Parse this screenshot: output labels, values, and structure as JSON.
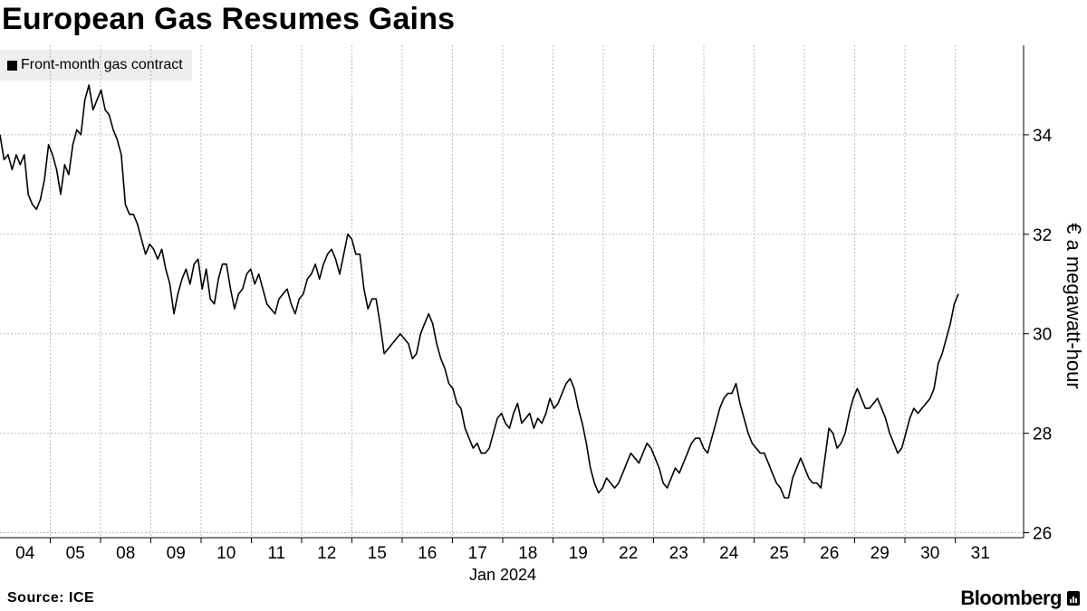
{
  "title": "European Gas Resumes Gains",
  "source": "Source: ICE",
  "brand": "Bloomberg",
  "chart_data": {
    "type": "line",
    "title": "European Gas Resumes Gains",
    "ylabel": "€ a megawatt-hour",
    "xlabel": "Jan 2024",
    "ylim": [
      25.9,
      35.8
    ],
    "yticks": [
      26,
      28,
      30,
      32,
      34
    ],
    "grid": true,
    "legend_position": "top-left",
    "x_ticks": [
      "04",
      "05",
      "08",
      "09",
      "10",
      "11",
      "12",
      "15",
      "16",
      "17",
      "18",
      "19",
      "22",
      "23",
      "24",
      "25",
      "26",
      "29",
      "30",
      "31"
    ],
    "series": [
      {
        "name": "Front-month gas contract",
        "color": "#000000",
        "values": [
          34.0,
          33.5,
          33.6,
          33.3,
          33.6,
          33.4,
          33.6,
          32.8,
          32.6,
          32.5,
          32.7,
          33.1,
          33.8,
          33.6,
          33.3,
          32.8,
          33.4,
          33.2,
          33.8,
          34.1,
          34.0,
          34.7,
          35.0,
          34.5,
          34.7,
          34.9,
          34.5,
          34.4,
          34.1,
          33.9,
          33.6,
          32.6,
          32.4,
          32.4,
          32.2,
          31.9,
          31.6,
          31.8,
          31.7,
          31.5,
          31.7,
          31.3,
          31.0,
          30.4,
          30.8,
          31.1,
          31.3,
          31.0,
          31.4,
          31.5,
          30.9,
          31.3,
          30.7,
          30.6,
          31.1,
          31.4,
          31.4,
          30.9,
          30.5,
          30.8,
          30.9,
          31.2,
          31.3,
          31.0,
          31.2,
          30.9,
          30.6,
          30.5,
          30.4,
          30.7,
          30.8,
          30.9,
          30.6,
          30.4,
          30.7,
          30.8,
          31.1,
          31.2,
          31.4,
          31.1,
          31.4,
          31.6,
          31.7,
          31.5,
          31.2,
          31.6,
          32.0,
          31.9,
          31.6,
          31.6,
          30.9,
          30.5,
          30.7,
          30.7,
          30.2,
          29.6,
          29.7,
          29.8,
          29.9,
          30.0,
          29.9,
          29.8,
          29.5,
          29.6,
          30.0,
          30.2,
          30.4,
          30.2,
          29.8,
          29.5,
          29.3,
          29.0,
          28.9,
          28.6,
          28.5,
          28.1,
          27.9,
          27.7,
          27.8,
          27.6,
          27.6,
          27.7,
          28.0,
          28.3,
          28.4,
          28.2,
          28.1,
          28.4,
          28.6,
          28.2,
          28.3,
          28.4,
          28.1,
          28.3,
          28.2,
          28.4,
          28.7,
          28.5,
          28.6,
          28.8,
          29.0,
          29.1,
          28.9,
          28.5,
          28.2,
          27.8,
          27.3,
          27.0,
          26.8,
          26.9,
          27.1,
          27.0,
          26.9,
          27.0,
          27.2,
          27.4,
          27.6,
          27.5,
          27.4,
          27.6,
          27.8,
          27.7,
          27.5,
          27.3,
          27.0,
          26.9,
          27.1,
          27.3,
          27.2,
          27.4,
          27.6,
          27.8,
          27.9,
          27.9,
          27.7,
          27.6,
          27.9,
          28.2,
          28.5,
          28.7,
          28.8,
          28.8,
          29.0,
          28.6,
          28.3,
          28.0,
          27.8,
          27.7,
          27.6,
          27.6,
          27.4,
          27.2,
          27.0,
          26.9,
          26.7,
          26.7,
          27.1,
          27.3,
          27.5,
          27.3,
          27.1,
          27.0,
          27.0,
          26.9,
          27.5,
          28.1,
          28.0,
          27.7,
          27.8,
          28.0,
          28.4,
          28.7,
          28.9,
          28.7,
          28.5,
          28.5,
          28.6,
          28.7,
          28.5,
          28.3,
          28.0,
          27.8,
          27.6,
          27.7,
          28.0,
          28.3,
          28.5,
          28.4,
          28.5,
          28.6,
          28.7,
          28.9,
          29.4,
          29.6,
          29.9,
          30.2,
          30.6,
          30.8
        ]
      }
    ]
  }
}
